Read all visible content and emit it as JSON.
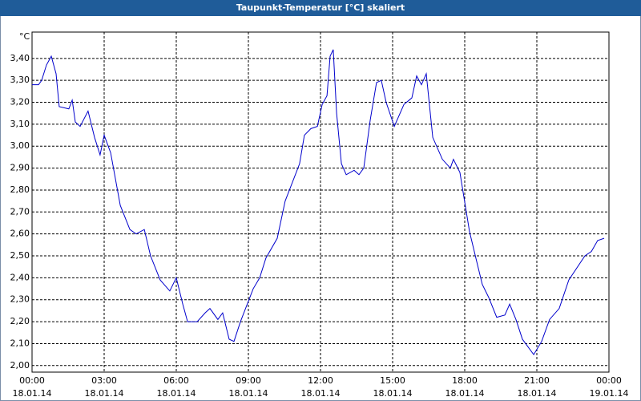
{
  "chart_data": {
    "type": "line",
    "title": "Taupunkt-Temperatur [°C] skaliert",
    "ylabel": "°C",
    "xlim": [
      0,
      24
    ],
    "ylim": [
      1.97,
      3.52
    ],
    "grid": true,
    "xticks": [
      {
        "value": 0,
        "label": [
          "00:00",
          "18.01.14"
        ]
      },
      {
        "value": 3,
        "label": [
          "03:00",
          "18.01.14"
        ]
      },
      {
        "value": 6,
        "label": [
          "06:00",
          "18.01.14"
        ]
      },
      {
        "value": 9,
        "label": [
          "09:00",
          "18.01.14"
        ]
      },
      {
        "value": 12,
        "label": [
          "12:00",
          "18.01.14"
        ]
      },
      {
        "value": 15,
        "label": [
          "15:00",
          "18.01.14"
        ]
      },
      {
        "value": 18,
        "label": [
          "18:00",
          "18.01.14"
        ]
      },
      {
        "value": 21,
        "label": [
          "21:00",
          "18.01.14"
        ]
      },
      {
        "value": 24,
        "label": [
          "00:00",
          "19.01.14"
        ]
      }
    ],
    "yticks": [
      {
        "value": 2.0,
        "label": "2,00"
      },
      {
        "value": 2.1,
        "label": "2,10"
      },
      {
        "value": 2.2,
        "label": "2,20"
      },
      {
        "value": 2.3,
        "label": "2,30"
      },
      {
        "value": 2.4,
        "label": "2,40"
      },
      {
        "value": 2.5,
        "label": "2,50"
      },
      {
        "value": 2.6,
        "label": "2,60"
      },
      {
        "value": 2.7,
        "label": "2,70"
      },
      {
        "value": 2.8,
        "label": "2,80"
      },
      {
        "value": 2.9,
        "label": "2,90"
      },
      {
        "value": 3.0,
        "label": "3,00"
      },
      {
        "value": 3.1,
        "label": "3,10"
      },
      {
        "value": 3.2,
        "label": "3,20"
      },
      {
        "value": 3.3,
        "label": "3,30"
      },
      {
        "value": 3.4,
        "label": "3,40"
      }
    ],
    "x": [
      0,
      0.27,
      0.4,
      0.6,
      0.8,
      1.0,
      1.13,
      1.53,
      1.67,
      1.8,
      2.0,
      2.33,
      2.6,
      2.83,
      3.0,
      3.27,
      3.67,
      4.07,
      4.33,
      4.67,
      4.93,
      5.33,
      5.73,
      6.0,
      6.27,
      6.47,
      6.87,
      7.2,
      7.4,
      7.73,
      7.93,
      8.2,
      8.4,
      8.67,
      9.2,
      9.47,
      9.73,
      10.2,
      10.53,
      11.13,
      11.33,
      11.6,
      11.87,
      12.07,
      12.27,
      12.4,
      12.53,
      12.67,
      12.87,
      13.07,
      13.4,
      13.6,
      13.8,
      14.07,
      14.33,
      14.53,
      14.73,
      15.07,
      15.47,
      15.8,
      16.0,
      16.2,
      16.4,
      16.67,
      17.07,
      17.4,
      17.53,
      17.8,
      18.2,
      18.53,
      18.73,
      19.0,
      19.33,
      19.67,
      19.87,
      20.13,
      20.4,
      20.87,
      21.2,
      21.53,
      21.93,
      22.33,
      23.0,
      23.27,
      23.53,
      23.8
    ],
    "series": [
      {
        "color": "#0000cc",
        "values": [
          3.28,
          3.28,
          3.3,
          3.37,
          3.41,
          3.33,
          3.18,
          3.17,
          3.21,
          3.11,
          3.09,
          3.16,
          3.04,
          2.96,
          3.05,
          2.97,
          2.73,
          2.62,
          2.6,
          2.62,
          2.5,
          2.39,
          2.34,
          2.4,
          2.28,
          2.2,
          2.2,
          2.24,
          2.26,
          2.21,
          2.24,
          2.12,
          2.11,
          2.2,
          2.35,
          2.4,
          2.49,
          2.58,
          2.75,
          2.92,
          3.05,
          3.08,
          3.09,
          3.19,
          3.23,
          3.41,
          3.44,
          3.15,
          2.92,
          2.87,
          2.89,
          2.87,
          2.9,
          3.12,
          3.29,
          3.3,
          3.2,
          3.09,
          3.19,
          3.22,
          3.32,
          3.28,
          3.33,
          3.04,
          2.94,
          2.9,
          2.94,
          2.88,
          2.61,
          2.46,
          2.37,
          2.31,
          2.22,
          2.23,
          2.28,
          2.21,
          2.12,
          2.05,
          2.11,
          2.21,
          2.26,
          2.39,
          2.5,
          2.52,
          2.57,
          2.58
        ]
      }
    ]
  }
}
